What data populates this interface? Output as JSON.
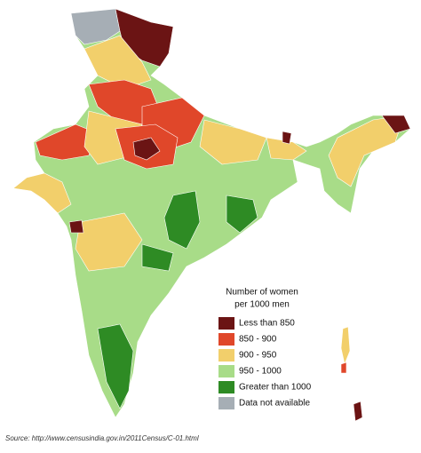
{
  "legend": {
    "title": [
      "Number of women",
      "per 1000 men"
    ],
    "items": [
      {
        "label": "Less than 850",
        "color": "#6b1414"
      },
      {
        "label": "850 - 900",
        "color": "#e0472a"
      },
      {
        "label": "900 - 950",
        "color": "#f2cf6b"
      },
      {
        "label": "950 - 1000",
        "color": "#a8dc88"
      },
      {
        "label": "Greater than 1000",
        "color": "#2e8b24"
      },
      {
        "label": "Data not available",
        "color": "#a6aeb5"
      }
    ]
  },
  "source": "Source: http://www.censusindia.gov.in/2011Census/C-01.html"
}
